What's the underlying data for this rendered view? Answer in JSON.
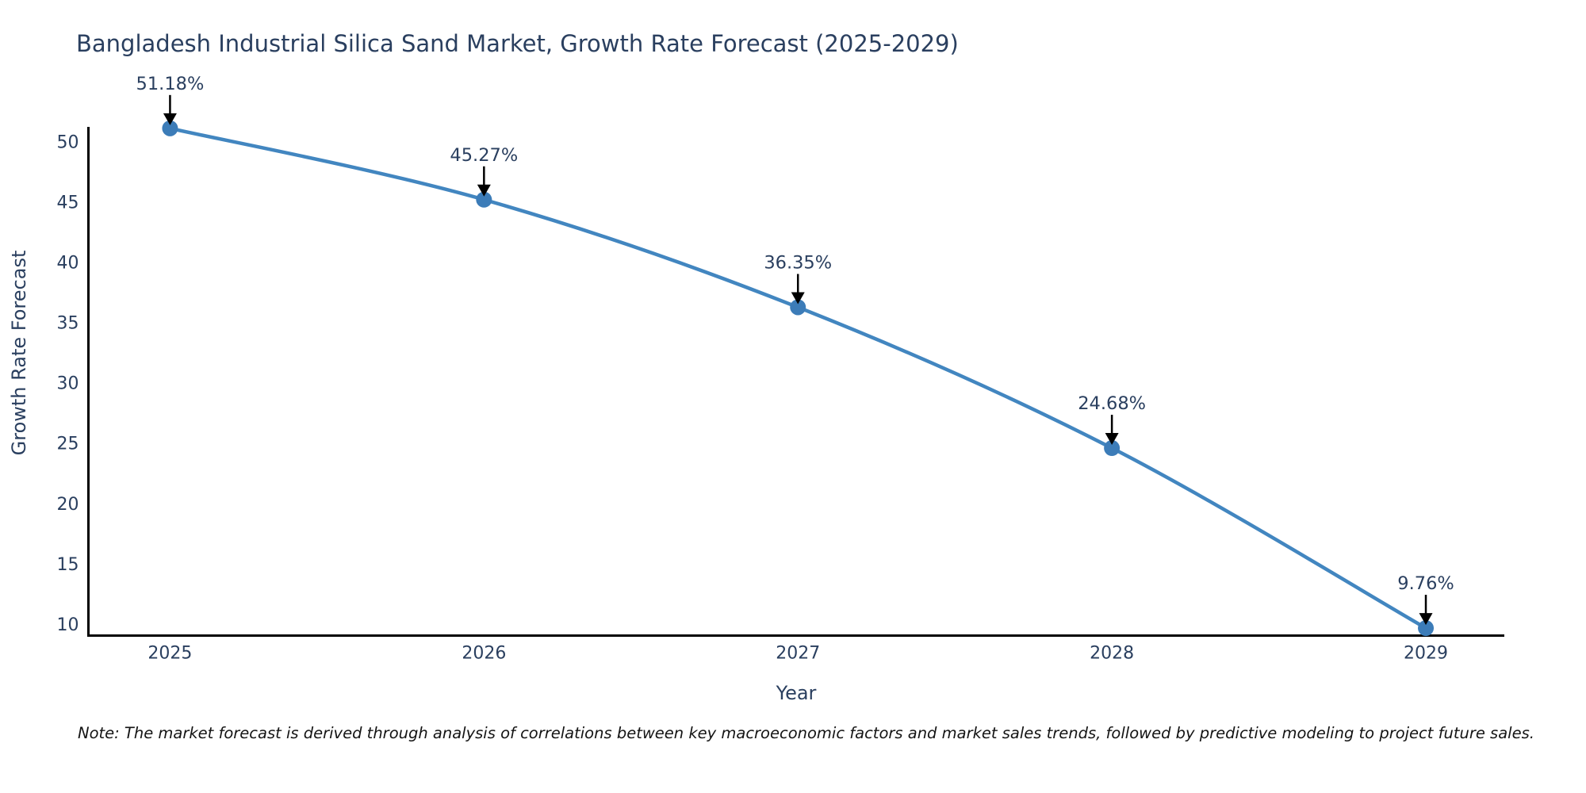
{
  "title": "Bangladesh Industrial Silica Sand Market, Growth Rate Forecast (2025-2029)",
  "note": "Note: The market forecast is derived through analysis of correlations between key macroeconomic factors and market sales trends, followed by predictive modeling to project future sales.",
  "chart_data": {
    "type": "line",
    "title": "Bangladesh Industrial Silica Sand Market, Growth Rate Forecast (2025-2029)",
    "xlabel": "Year",
    "ylabel": "Growth Rate Forecast",
    "categories": [
      "2025",
      "2026",
      "2027",
      "2028",
      "2029"
    ],
    "x": [
      2025,
      2026,
      2027,
      2028,
      2029
    ],
    "values": [
      51.18,
      45.27,
      36.35,
      24.68,
      9.76
    ],
    "point_labels": [
      "51.18%",
      "45.27%",
      "36.35%",
      "24.68%",
      "9.76%"
    ],
    "yticks": [
      10,
      15,
      20,
      25,
      30,
      35,
      40,
      45,
      50
    ],
    "xlim": [
      2024.74,
      2029.25
    ],
    "ylim": [
      9.14,
      51.3
    ],
    "grid": false,
    "legend": "none",
    "line_shape": "spline",
    "colors": {
      "line": "#4286c0",
      "marker": "#3c7cb8",
      "arrow": "#000000",
      "axis": "#000000",
      "text": "#2a3f5f"
    }
  }
}
